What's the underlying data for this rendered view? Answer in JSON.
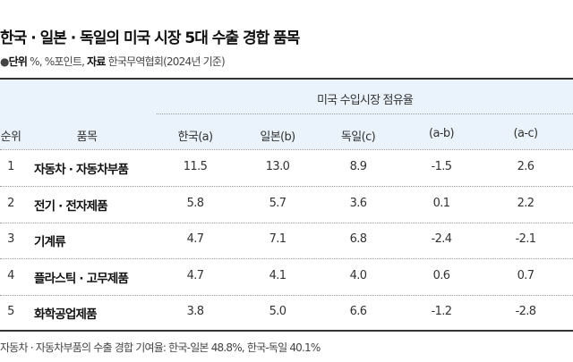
{
  "title": "한국 · 일본 · 독일의 미국 시장 5대 수출 경합 품목",
  "subtitle": {
    "bullet": "●",
    "unit_label": "단위",
    "unit_value": " %, %포인트, ",
    "source_label": "자료",
    "source_value": " 한국무역협회(2024년 기준)"
  },
  "table": {
    "group_header": "미국 수입시장 점유율",
    "headers": [
      "순위",
      "품목",
      "한국(a)",
      "일본(b)",
      "독일(c)",
      "(a-b)",
      "(a-c)"
    ],
    "rows": [
      [
        "1",
        "자동차 · 자동차부품",
        "11.5",
        "13.0",
        "8.9",
        "-1.5",
        "2.6"
      ],
      [
        "2",
        "전기 · 전자제품",
        "5.8",
        "5.7",
        "3.6",
        "0.1",
        "2.2"
      ],
      [
        "3",
        "기계류",
        "4.7",
        "7.1",
        "6.8",
        "-2.4",
        "-2.1"
      ],
      [
        "4",
        "플라스틱 · 고무제품",
        "4.7",
        "4.1",
        "4.0",
        "0.6",
        "0.7"
      ],
      [
        "5",
        "화학공업제품",
        "3.8",
        "5.0",
        "6.6",
        "-1.2",
        "-2.8"
      ]
    ]
  },
  "footnote": "자동차 · 자동차부품의 수출 경합 기여율: 한국-일본 48.8%, 한국-독일 40.1%"
}
